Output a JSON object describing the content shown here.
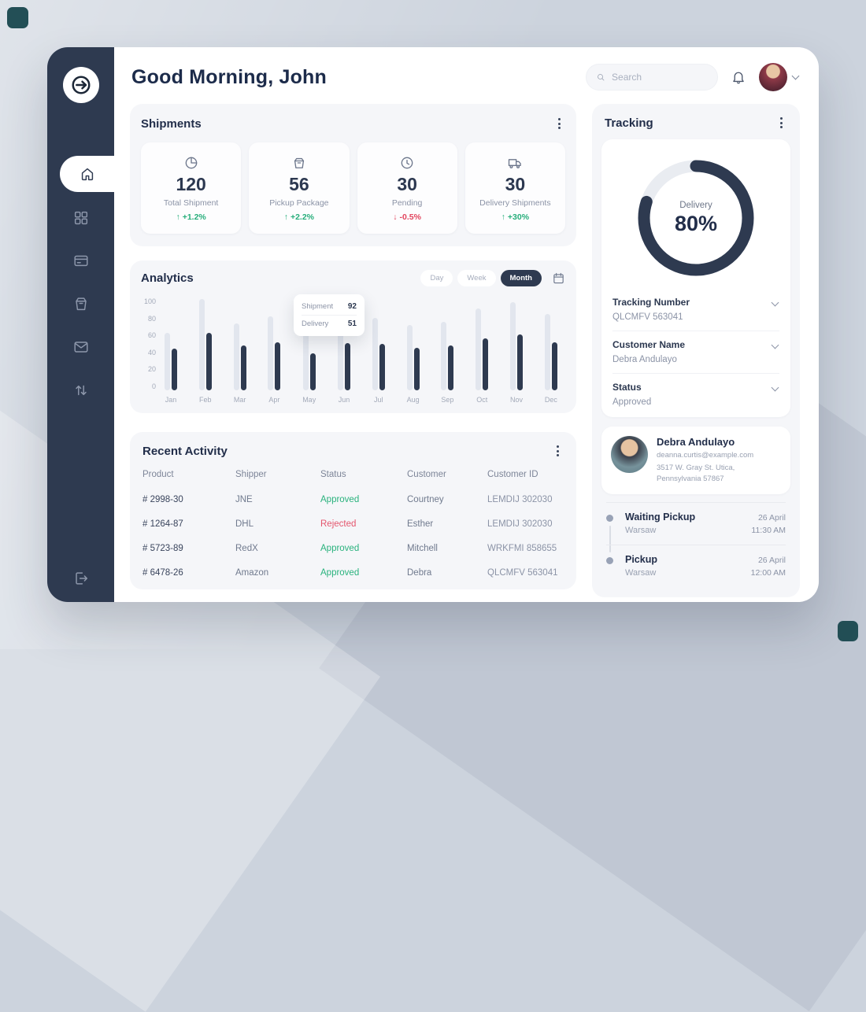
{
  "app": {
    "greeting": "Good Morning, John",
    "search_placeholder": "Search"
  },
  "sidebar": {
    "logo_icon": "arrow-circle-logo",
    "nav_icons": [
      "home-icon",
      "grid-icon",
      "wallet-icon",
      "package-icon",
      "mail-icon",
      "transfer-arrows-icon"
    ],
    "logout_icon": "logout-icon"
  },
  "shipments": {
    "title": "Shipments",
    "cards": [
      {
        "icon": "pie-chart-icon",
        "value": "120",
        "label": "Total Shipment",
        "delta": "+1.2%",
        "trend": "up"
      },
      {
        "icon": "package-icon",
        "value": "56",
        "label": "Pickup Package",
        "delta": "+2.2%",
        "trend": "up"
      },
      {
        "icon": "clock-icon",
        "value": "30",
        "label": "Pending",
        "delta": "-0.5%",
        "trend": "down"
      },
      {
        "icon": "truck-icon",
        "value": "30",
        "label": "Delivery Shipments",
        "delta": "+30%",
        "trend": "up"
      }
    ]
  },
  "analytics": {
    "title": "Analytics",
    "filters": [
      {
        "label": "Day",
        "active": false
      },
      {
        "label": "Week",
        "active": false
      },
      {
        "label": "Month",
        "active": true
      }
    ],
    "tooltip": {
      "rows": [
        {
          "label": "Shipment",
          "value": "92"
        },
        {
          "label": "Delivery",
          "value": "51"
        }
      ]
    }
  },
  "chart_data": {
    "type": "bar",
    "title": "Analytics",
    "categories": [
      "Jan",
      "Feb",
      "Mar",
      "Apr",
      "May",
      "Jun",
      "Jul",
      "Aug",
      "Sep",
      "Oct",
      "Nov",
      "Dec"
    ],
    "series": [
      {
        "name": "Shipment",
        "color": "#e2e6ee",
        "values": [
          62,
          98,
          72,
          80,
          65,
          92,
          78,
          70,
          74,
          88,
          95,
          82
        ]
      },
      {
        "name": "Delivery",
        "color": "#2e3a50",
        "values": [
          45,
          62,
          48,
          52,
          40,
          51,
          50,
          46,
          48,
          56,
          60,
          52
        ]
      }
    ],
    "xlabel": "",
    "ylabel": "",
    "yticks": [
      0,
      20,
      40,
      60,
      80,
      100
    ],
    "ylim": [
      0,
      100
    ],
    "grid": false,
    "legend": false
  },
  "recent_activity": {
    "title": "Recent Activity",
    "columns": [
      "Product",
      "Shipper",
      "Status",
      "Customer",
      "Customer ID"
    ],
    "rows": [
      {
        "product": "# 2998-30",
        "shipper": "JNE",
        "status": "Approved",
        "customer": "Courtney",
        "customer_id": "LEMDIJ 302030"
      },
      {
        "product": "# 1264-87",
        "shipper": "DHL",
        "status": "Rejected",
        "customer": "Esther",
        "customer_id": "LEMDIJ 302030"
      },
      {
        "product": "# 5723-89",
        "shipper": "RedX",
        "status": "Approved",
        "customer": "Mitchell",
        "customer_id": "WRKFMI 858655"
      },
      {
        "product": "# 6478-26",
        "shipper": "Amazon",
        "status": "Approved",
        "customer": "Debra",
        "customer_id": "QLCMFV 563041"
      }
    ]
  },
  "tracking": {
    "title": "Tracking",
    "donut": {
      "label": "Delivery",
      "percent": 80,
      "percent_label": "80%"
    },
    "colors": {
      "ring": "#2e3a50",
      "track": "#e9ecf1"
    },
    "fields": [
      {
        "label": "Tracking Number",
        "value": "QLCMFV 563041"
      },
      {
        "label": "Customer Name",
        "value": "Debra Andulayo"
      },
      {
        "label": "Status",
        "value": "Approved"
      }
    ],
    "customer": {
      "name": "Debra Andulayo",
      "email": "deanna.curtis@example.com",
      "address": "3517 W. Gray St. Utica, Pennsylvania 57867"
    },
    "timeline": [
      {
        "title": "Waiting Pickup",
        "location": "Warsaw",
        "date": "26 April",
        "time": "11:30 AM"
      },
      {
        "title": "Pickup",
        "location": "Warsaw",
        "date": "26 April",
        "time": "12:00 AM"
      }
    ]
  }
}
